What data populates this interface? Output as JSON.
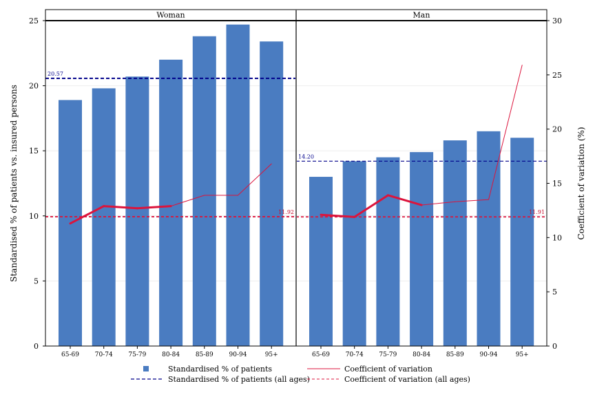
{
  "chart_data": {
    "type": "bar",
    "y_left_label": "Standardised % of patients vs. insured persons",
    "y_right_label": "Coefficient of variation (%)",
    "ylim_left": [
      0,
      25
    ],
    "ylim_right": [
      0,
      30
    ],
    "yticks_left": [
      "0",
      "5",
      "10",
      "15",
      "20",
      "25"
    ],
    "yticks_right": [
      "0",
      "5",
      "10",
      "15",
      "20",
      "25",
      "30"
    ],
    "categories": [
      "65-69",
      "70-74",
      "75-79",
      "80-84",
      "85-89",
      "90-94",
      "95+"
    ],
    "panels": [
      {
        "title": "Woman",
        "bars": [
          18.9,
          19.8,
          20.7,
          22.0,
          23.8,
          24.7,
          23.4
        ],
        "cv": [
          11.3,
          12.9,
          12.7,
          12.9,
          13.9,
          13.9,
          16.8
        ],
        "bar_ref": 20.57,
        "bar_ref_label": "20.57",
        "cv_ref": 11.92,
        "cv_ref_label": "11.92"
      },
      {
        "title": "Man",
        "bars": [
          13.0,
          14.2,
          14.5,
          14.9,
          15.8,
          16.5,
          16.0
        ],
        "cv": [
          12.1,
          11.9,
          13.9,
          13.0,
          13.3,
          13.5,
          25.9
        ],
        "bar_ref": 14.2,
        "bar_ref_label": "14.20",
        "cv_ref": 11.91,
        "cv_ref_label": "11.91"
      }
    ],
    "legend": {
      "position": "bottom",
      "items": [
        {
          "label": "Standardised % of patients",
          "kind": "square"
        },
        {
          "label": "Coefficient of variation",
          "kind": "line"
        },
        {
          "label": "Standardised % of patients (all ages)",
          "kind": "dash-blue"
        },
        {
          "label": "Coefficient of variation (all ages)",
          "kind": "dash-red"
        }
      ]
    },
    "colors": {
      "bar": "#4a7cc1",
      "line": "#dc143c",
      "bar_ref": "#00008b",
      "cv_ref": "#dc143c"
    }
  }
}
